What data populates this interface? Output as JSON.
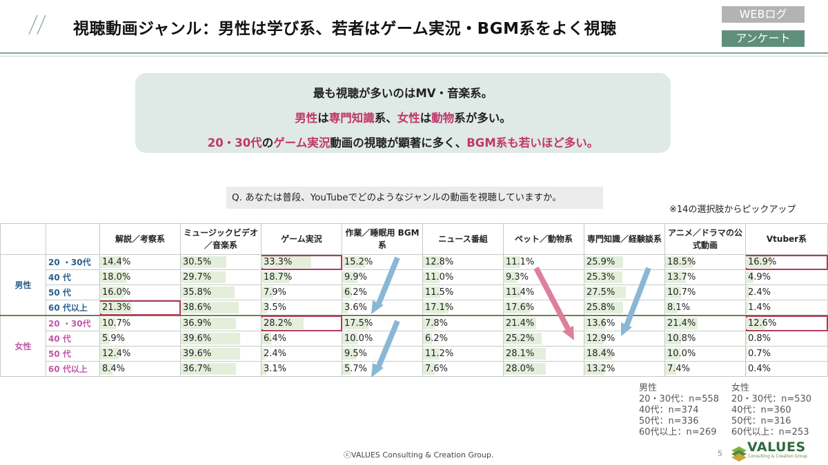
{
  "header": {
    "title": "視聴動画ジャンル：男性は学び系、若者はゲーム実況・BGM系をよく視聴",
    "tag_web": "WEBログ",
    "tag_survey": "アンケート"
  },
  "summary": {
    "line1": "最も視聴が多いのはMV・音楽系。",
    "line2": [
      {
        "t": "男性",
        "pink": true
      },
      {
        "t": "は",
        "pink": false
      },
      {
        "t": "専門知識",
        "pink": true
      },
      {
        "t": "系、",
        "pink": false
      },
      {
        "t": "女性",
        "pink": true
      },
      {
        "t": "は",
        "pink": false
      },
      {
        "t": "動物",
        "pink": true
      },
      {
        "t": "系が多い。",
        "pink": false
      }
    ],
    "line3": [
      {
        "t": "20・30代",
        "pink": true
      },
      {
        "t": "の",
        "pink": false
      },
      {
        "t": "ゲーム実況",
        "pink": true
      },
      {
        "t": "動画の視聴が顕著に多く、",
        "pink": false
      },
      {
        "t": "BGM系も若いほど多い。",
        "pink": true
      }
    ]
  },
  "question": "Q. あなたは普段、YouTubeでどのようなジャンルの動画を視聴していますか。",
  "note": "※14の選択肢からピックアップ",
  "table": {
    "columns": [
      "解説／考察系",
      "ミュージックビデオ／音楽系",
      "ゲーム実況",
      "作業／睡眠用 BGM 系",
      "ニュース番組",
      "ペット／動物系",
      "専門知識／経験談系",
      "アニメ／ドラマの公式動画",
      "Vtuber系"
    ],
    "groups": [
      {
        "gender": "男性",
        "rows": [
          {
            "age": "20 ・30代",
            "values": [
              "14.4%",
              "30.5%",
              "33.3%",
              "15.2%",
              "12.8%",
              "11.1%",
              "25.9%",
              "18.5%",
              "16.9%"
            ],
            "num": [
              14.4,
              30.5,
              33.3,
              15.2,
              12.8,
              11.1,
              25.9,
              18.5,
              16.9
            ],
            "boxed": [
              2,
              8
            ]
          },
          {
            "age": "40 代",
            "values": [
              "18.0%",
              "29.7%",
              "18.7%",
              "9.9%",
              "11.0%",
              "9.3%",
              "25.3%",
              "13.7%",
              "4.9%"
            ],
            "num": [
              18.0,
              29.7,
              18.7,
              9.9,
              11.0,
              9.3,
              25.3,
              13.7,
              4.9
            ],
            "boxed": []
          },
          {
            "age": "50 代",
            "values": [
              "16.0%",
              "35.8%",
              "7.9%",
              "6.2%",
              "11.5%",
              "11.4%",
              "27.5%",
              "10.7%",
              "2.4%"
            ],
            "num": [
              16.0,
              35.8,
              7.9,
              6.2,
              11.5,
              11.4,
              27.5,
              10.7,
              2.4
            ],
            "boxed": []
          },
          {
            "age": "60 代以上",
            "values": [
              "21.3%",
              "38.6%",
              "3.5%",
              "3.6%",
              "17.1%",
              "17.6%",
              "25.8%",
              "8.1%",
              "1.4%"
            ],
            "num": [
              21.3,
              38.6,
              3.5,
              3.6,
              17.1,
              17.6,
              25.8,
              8.1,
              1.4
            ],
            "boxed": [
              0
            ]
          }
        ]
      },
      {
        "gender": "女性",
        "rows": [
          {
            "age": "20 ・30代",
            "values": [
              "10.7%",
              "36.9%",
              "28.2%",
              "17.5%",
              "7.8%",
              "21.4%",
              "13.6%",
              "21.4%",
              "12.6%"
            ],
            "num": [
              10.7,
              36.9,
              28.2,
              17.5,
              7.8,
              21.4,
              13.6,
              21.4,
              12.6
            ],
            "boxed": [
              2,
              8
            ]
          },
          {
            "age": "40 代",
            "values": [
              "5.9%",
              "39.6%",
              "6.4%",
              "10.0%",
              "6.2%",
              "25.2%",
              "12.9%",
              "10.8%",
              "0.8%"
            ],
            "num": [
              5.9,
              39.6,
              6.4,
              10.0,
              6.2,
              25.2,
              12.9,
              10.8,
              0.8
            ],
            "boxed": []
          },
          {
            "age": "50 代",
            "values": [
              "12.4%",
              "39.6%",
              "2.4%",
              "9.5%",
              "11.2%",
              "28.1%",
              "18.4%",
              "10.0%",
              "0.7%"
            ],
            "num": [
              12.4,
              39.6,
              2.4,
              9.5,
              11.2,
              28.1,
              18.4,
              10.0,
              0.7
            ],
            "boxed": []
          },
          {
            "age": "60 代以上",
            "values": [
              "8.4%",
              "36.7%",
              "3.1%",
              "5.7%",
              "7.6%",
              "28.0%",
              "13.2%",
              "7.4%",
              "0.4%"
            ],
            "num": [
              8.4,
              36.7,
              3.1,
              5.7,
              7.6,
              28.0,
              13.2,
              7.4,
              0.4
            ],
            "boxed": []
          }
        ]
      }
    ]
  },
  "sample_sizes": {
    "male": "男性\n20・30代：n=558\n40代：n=374\n50代：n=336\n60代以上：n=269",
    "female": "女性\n20・30代：n=530\n40代：n=360\n50代：n=316\n60代以上：n=253"
  },
  "footer": {
    "copyright": "ⓒVALUES  Consulting & Creation Group.",
    "page": "5",
    "logo_name": "VALUES",
    "logo_sub": "Consulting & Creation Group"
  },
  "colors": {
    "accent_pink": "#c0376a",
    "summary_bg": "#dfe9e5",
    "bar_fill": "#e4efdb",
    "arrow_blue": "#8ab7d5",
    "arrow_pink": "#de7f9c"
  }
}
